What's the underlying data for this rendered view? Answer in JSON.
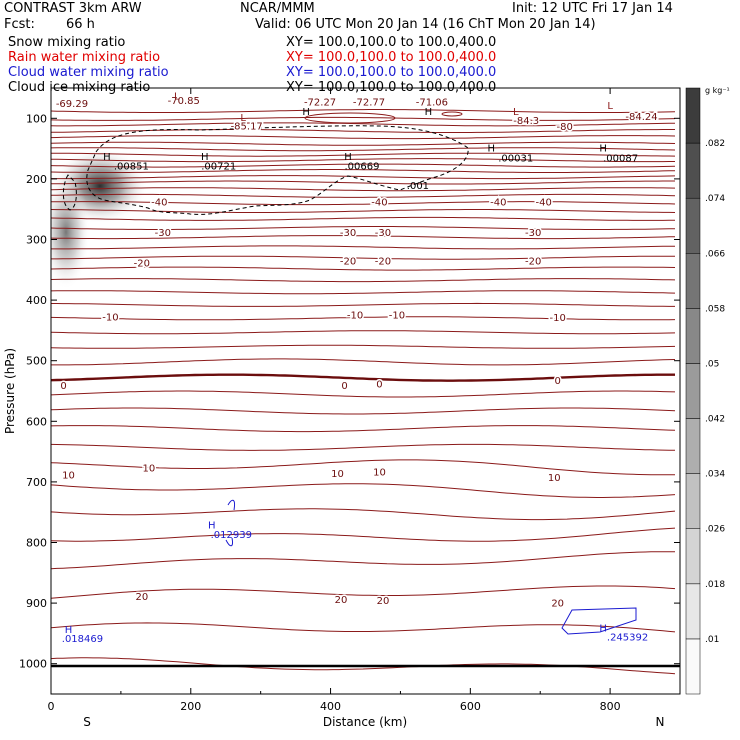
{
  "header": {
    "model": "CONTRAST   3km ARW",
    "org": "NCAR/MMM",
    "init": "Init: 12 UTC Fri 17 Jan 14",
    "fcst_label": "Fcst:",
    "fcst_value": "66 h",
    "valid": "Valid: 06 UTC Mon 20 Jan 14 (16 ChT Mon 20 Jan 14)",
    "fields": [
      {
        "name": "Snow mixing ratio",
        "xy": "XY= 100.0,100.0 to 100.0,400.0",
        "color": "#000000"
      },
      {
        "name": "Rain water mixing ratio",
        "xy": "XY= 100.0,100.0 to 100.0,400.0",
        "color": "#e00000"
      },
      {
        "name": "Cloud water mixing ratio",
        "xy": "XY= 100.0,100.0 to 100.0,400.0",
        "color": "#1a1ad0"
      },
      {
        "name": "Cloud ice mixing ratio",
        "xy": "XY= 100.0,100.0 to 100.0,400.0",
        "color": "#000000"
      }
    ]
  },
  "chart_data": {
    "type": "cross-section",
    "xlabel": "Distance (km)",
    "ylabel": "Pressure (hPa)",
    "xlim": [
      0,
      900
    ],
    "ylim": [
      1050,
      50
    ],
    "xticks": [
      0,
      200,
      400,
      600,
      800
    ],
    "yticks": [
      100,
      200,
      300,
      400,
      500,
      600,
      700,
      800,
      900,
      1000
    ],
    "left_end_label": "S",
    "right_end_label": "N",
    "colorbar": {
      "unit": "g kg⁻¹",
      "ticks": [
        ".01",
        ".018",
        ".026",
        ".034",
        ".042",
        ".05",
        ".058",
        ".066",
        ".074",
        ".082"
      ]
    },
    "temperature_labels": [
      {
        "text": "-69.29",
        "x": 30,
        "p": 75
      },
      {
        "text": "-70.85",
        "x": 190,
        "p": 70
      },
      {
        "text": "-72.27",
        "x": 385,
        "p": 72
      },
      {
        "text": "-72.77",
        "x": 455,
        "p": 72
      },
      {
        "text": "-71.06",
        "x": 545,
        "p": 72
      },
      {
        "text": "-85.17",
        "x": 280,
        "p": 112
      },
      {
        "text": "-84.3",
        "x": 680,
        "p": 103
      },
      {
        "text": "-80",
        "x": 735,
        "p": 113
      },
      {
        "text": "-84.24",
        "x": 845,
        "p": 96
      },
      {
        "text": "-40",
        "x": 155,
        "p": 237
      },
      {
        "text": "-40",
        "x": 470,
        "p": 237
      },
      {
        "text": "-40",
        "x": 640,
        "p": 237
      },
      {
        "text": "-40",
        "x": 705,
        "p": 237
      },
      {
        "text": "-30",
        "x": 160,
        "p": 288
      },
      {
        "text": "-30",
        "x": 425,
        "p": 288
      },
      {
        "text": "-30",
        "x": 475,
        "p": 288
      },
      {
        "text": "-30",
        "x": 690,
        "p": 288
      },
      {
        "text": "-20",
        "x": 130,
        "p": 338
      },
      {
        "text": "-20",
        "x": 425,
        "p": 335
      },
      {
        "text": "-20",
        "x": 475,
        "p": 335
      },
      {
        "text": "-20",
        "x": 690,
        "p": 335
      },
      {
        "text": "-10",
        "x": 85,
        "p": 427
      },
      {
        "text": "-10",
        "x": 435,
        "p": 424
      },
      {
        "text": "-10",
        "x": 495,
        "p": 424
      },
      {
        "text": "-10",
        "x": 725,
        "p": 428
      },
      {
        "text": "0",
        "x": 18,
        "p": 540
      },
      {
        "text": "0",
        "x": 420,
        "p": 540
      },
      {
        "text": "0",
        "x": 470,
        "p": 538
      },
      {
        "text": "0",
        "x": 725,
        "p": 532
      },
      {
        "text": "10",
        "x": 25,
        "p": 688
      },
      {
        "text": "10",
        "x": 140,
        "p": 676
      },
      {
        "text": "10",
        "x": 410,
        "p": 685
      },
      {
        "text": "10",
        "x": 470,
        "p": 683
      },
      {
        "text": "10",
        "x": 720,
        "p": 692
      },
      {
        "text": "20",
        "x": 130,
        "p": 888
      },
      {
        "text": "20",
        "x": 415,
        "p": 893
      },
      {
        "text": "20",
        "x": 475,
        "p": 895
      },
      {
        "text": "20",
        "x": 725,
        "p": 899
      }
    ],
    "max_min_labels": [
      {
        "text": "L",
        "x": 180,
        "p": 62,
        "color": "#8b1a1a"
      },
      {
        "text": "L",
        "x": 275,
        "p": 98,
        "color": "#8b1a1a"
      },
      {
        "text": "H",
        "x": 365,
        "p": 88,
        "color": "#000000"
      },
      {
        "text": "H",
        "x": 540,
        "p": 88,
        "color": "#000000"
      },
      {
        "text": "L",
        "x": 665,
        "p": 88,
        "color": "#8b1a1a"
      },
      {
        "text": "L",
        "x": 800,
        "p": 78,
        "color": "#8b1a1a"
      },
      {
        "text": "H",
        "x": 80,
        "p": 162,
        "color": "#000000"
      },
      {
        "text": "H",
        "x": 220,
        "p": 162,
        "color": "#000000"
      },
      {
        "text": "H",
        "x": 425,
        "p": 162,
        "color": "#000000"
      },
      {
        "text": "H",
        "x": 630,
        "p": 148,
        "color": "#000000"
      },
      {
        "text": "H",
        "x": 790,
        "p": 148,
        "color": "#000000"
      },
      {
        "text": "H",
        "x": 230,
        "p": 770,
        "color": "#1a1ad0"
      },
      {
        "text": "H",
        "x": 25,
        "p": 943,
        "color": "#1a1ad0"
      },
      {
        "text": "H",
        "x": 790,
        "p": 940,
        "color": "#1a1ad0"
      }
    ],
    "value_labels": [
      {
        "text": ".00851",
        "x": 115,
        "p": 178,
        "color": "#000000"
      },
      {
        "text": ".00721",
        "x": 240,
        "p": 178,
        "color": "#000000"
      },
      {
        "text": ".00669",
        "x": 445,
        "p": 178,
        "color": "#000000"
      },
      {
        "text": ".00031",
        "x": 665,
        "p": 165,
        "color": "#000000"
      },
      {
        "text": ".00087",
        "x": 815,
        "p": 165,
        "color": "#000000"
      },
      {
        "text": ".001",
        "x": 525,
        "p": 210,
        "color": "#000000"
      },
      {
        "text": ".012939",
        "x": 258,
        "p": 786,
        "color": "#1a1ad0"
      },
      {
        "text": ".018469",
        "x": 45,
        "p": 958,
        "color": "#1a1ad0"
      },
      {
        "text": ".245392",
        "x": 825,
        "p": 955,
        "color": "#1a1ad0"
      }
    ]
  }
}
